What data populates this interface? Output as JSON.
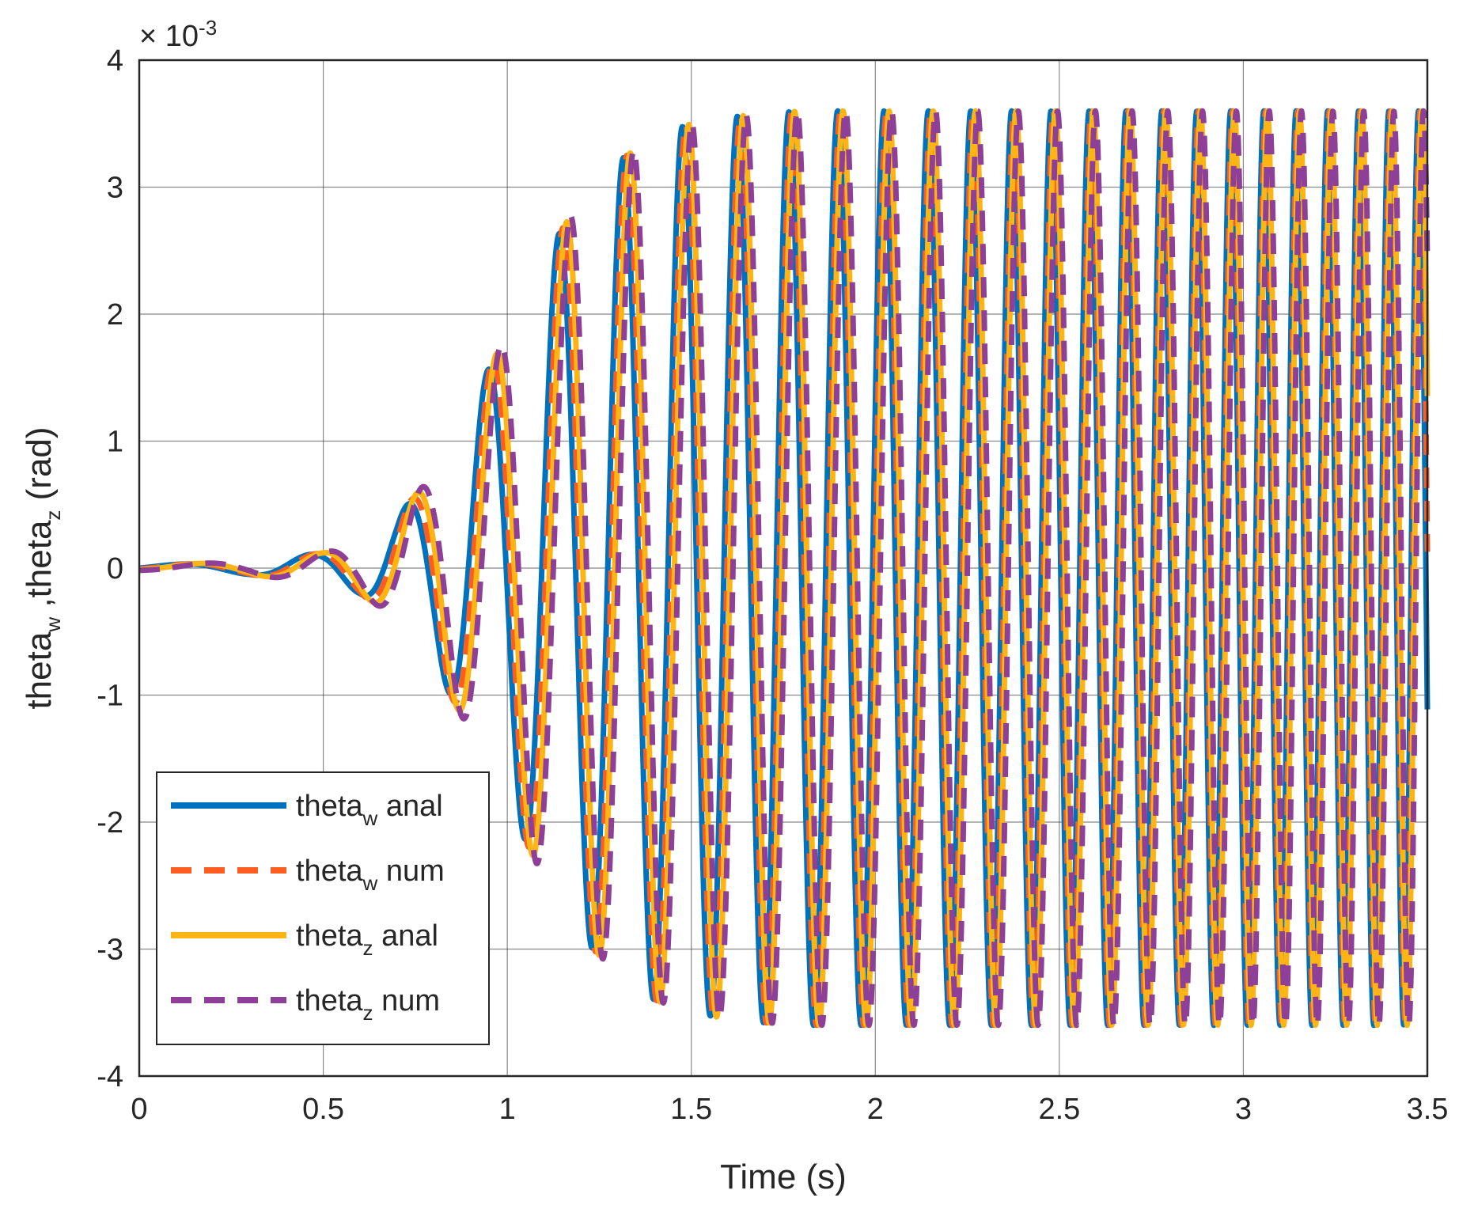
{
  "chart_data": {
    "type": "line",
    "title": "",
    "xlabel": "Time (s)",
    "ylabel": {
      "parts": [
        "theta",
        "w",
        " ,theta",
        "z",
        " (rad)"
      ]
    },
    "y_exponent": {
      "base": "× 10",
      "power": "-3"
    },
    "xlim": [
      0,
      3.5
    ],
    "ylim": [
      -4,
      4
    ],
    "x_ticks": [
      "0",
      "0.5",
      "1",
      "1.5",
      "2",
      "2.5",
      "3",
      "3.5"
    ],
    "y_ticks": [
      "4",
      "3",
      "2",
      "1",
      "0",
      "-1",
      "-2",
      "-3",
      "-4"
    ],
    "grid": true,
    "legend_position": "bottom-left",
    "signal": {
      "frequency_start_hz": 2.0,
      "frequency_end_hz": 12.6,
      "envelope": [
        [
          0,
          0.02
        ],
        [
          0.3,
          0.05
        ],
        [
          0.5,
          0.12
        ],
        [
          0.6,
          0.2
        ],
        [
          0.7,
          0.4
        ],
        [
          0.8,
          0.75
        ],
        [
          0.9,
          1.3
        ],
        [
          1.0,
          1.85
        ],
        [
          1.1,
          2.45
        ],
        [
          1.2,
          2.9
        ],
        [
          1.3,
          3.2
        ],
        [
          1.4,
          3.4
        ],
        [
          1.5,
          3.5
        ],
        [
          1.6,
          3.55
        ],
        [
          1.7,
          3.58
        ],
        [
          1.8,
          3.6
        ],
        [
          3.5,
          3.6
        ]
      ]
    },
    "series": [
      {
        "name": "theta_w anal",
        "label": "theta",
        "sub": "w",
        "suffix": " anal",
        "color": "#0072bd",
        "style": "solid",
        "phase_offset": 0.0
      },
      {
        "name": "theta_w num",
        "label": "theta",
        "sub": "w",
        "suffix": " num",
        "color": "#fd5d21",
        "style": "dashed",
        "phase_offset": 0.35
      },
      {
        "name": "theta_z anal",
        "label": "theta",
        "sub": "z",
        "suffix": " anal",
        "color": "#fdb515",
        "style": "solid",
        "phase_offset": 0.7
      },
      {
        "name": "theta_z num",
        "label": "theta",
        "sub": "z",
        "suffix": " num",
        "color": "#8e3f97",
        "style": "dashed",
        "phase_offset": 1.05
      }
    ]
  }
}
